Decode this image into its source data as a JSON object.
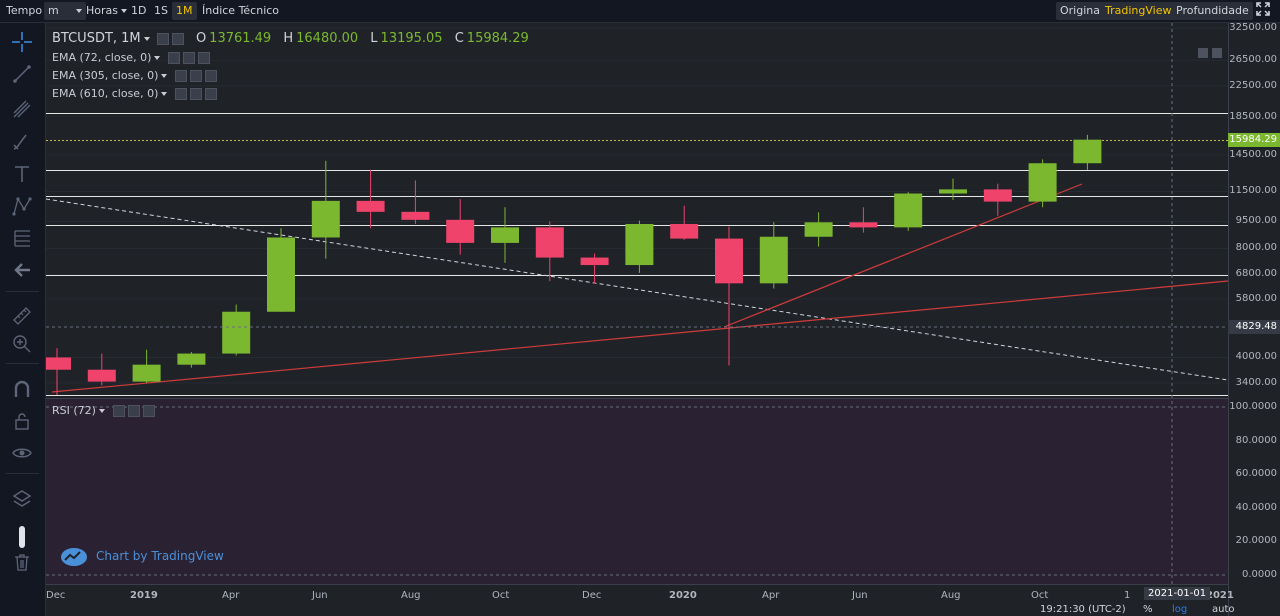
{
  "toolbar": {
    "tempo": "Tempo",
    "unit": "m",
    "horas": "Horas",
    "intervals": [
      "1D",
      "1S",
      "1M"
    ],
    "active_interval": "1M",
    "indicators": "Índice Técnico",
    "views": [
      "Original",
      "TradingView",
      "Profundidade"
    ],
    "active_view": "TradingView",
    "fullscreen_icon": "fullscreen-icon"
  },
  "left_tools": [
    "crosshair-icon",
    "trendline-icon",
    "pitchfork-icon",
    "brush-icon",
    "text-icon",
    "pattern-icon",
    "fib-icon",
    "arrow-left-icon",
    "ruler-icon",
    "zoom-icon",
    "magnet-icon",
    "lock-icon",
    "eye-icon",
    "layers-icon",
    "trash-icon"
  ],
  "legend": {
    "symbol": "BTCUSDT, 1M",
    "open_label": "O",
    "open": "13761.49",
    "high_label": "H",
    "high": "16480.00",
    "low_label": "L",
    "low": "13195.05",
    "close_label": "C",
    "close": "15984.29",
    "studies": [
      "EMA (72, close, 0)",
      "EMA (305, close, 0)",
      "EMA (610, close, 0)"
    ],
    "rsi": "RSI (72)"
  },
  "price_axis": {
    "ticks": [
      "32500.00",
      "26500.00",
      "22500.00",
      "18500.00",
      "14500.00",
      "11500.00",
      "9500.00",
      "8000.00",
      "6800.00",
      "5800.00",
      "4000.00",
      "3400.00"
    ],
    "last_price": "15984.29",
    "crosshair_price": "4829.48"
  },
  "rsi_axis": {
    "ticks": [
      "100.0000",
      "80.0000",
      "60.0000",
      "40.0000",
      "20.0000",
      "0.0000"
    ]
  },
  "time_axis": {
    "labels": [
      "Dec",
      "2019",
      "Apr",
      "Jun",
      "Aug",
      "Oct",
      "Dec",
      "2020",
      "Apr",
      "Jun",
      "Aug",
      "Oct",
      "1",
      "2021"
    ],
    "crosshair_date": "2021-01-01"
  },
  "status_bar": {
    "time": "19:21:30 (UTC-2)",
    "percent": "%",
    "log": "log",
    "auto": "auto"
  },
  "watermark": "Chart by TradingView",
  "colors": {
    "up": "#7cb82f",
    "down": "#f0436b",
    "accent": "#f3c500",
    "bg": "#1f2328"
  },
  "chart_data": {
    "type": "candlestick",
    "symbol": "BTCUSDT",
    "interval": "1M",
    "scale": "log",
    "candles": [
      {
        "t": "2018-12",
        "o": 4000,
        "h": 4240,
        "l": 3150,
        "c": 3700
      },
      {
        "t": "2019-01",
        "o": 3700,
        "h": 4100,
        "l": 3350,
        "c": 3430
      },
      {
        "t": "2019-02",
        "o": 3430,
        "h": 4200,
        "l": 3400,
        "c": 3820
      },
      {
        "t": "2019-03",
        "o": 3820,
        "h": 4140,
        "l": 3750,
        "c": 4100
      },
      {
        "t": "2019-04",
        "o": 4100,
        "h": 5600,
        "l": 4050,
        "c": 5350
      },
      {
        "t": "2019-05",
        "o": 5350,
        "h": 9100,
        "l": 5350,
        "c": 8580
      },
      {
        "t": "2019-06",
        "o": 8580,
        "h": 13970,
        "l": 7500,
        "c": 10830
      },
      {
        "t": "2019-07",
        "o": 10830,
        "h": 13200,
        "l": 9100,
        "c": 10100
      },
      {
        "t": "2019-08",
        "o": 10100,
        "h": 12340,
        "l": 9350,
        "c": 9600
      },
      {
        "t": "2019-09",
        "o": 9600,
        "h": 10950,
        "l": 7700,
        "c": 8290
      },
      {
        "t": "2019-10",
        "o": 8290,
        "h": 10400,
        "l": 7300,
        "c": 9150
      },
      {
        "t": "2019-11",
        "o": 9150,
        "h": 9500,
        "l": 6500,
        "c": 7550
      },
      {
        "t": "2019-12",
        "o": 7550,
        "h": 7750,
        "l": 6400,
        "c": 7200
      },
      {
        "t": "2020-01",
        "o": 7200,
        "h": 9550,
        "l": 6850,
        "c": 9350
      },
      {
        "t": "2020-02",
        "o": 9350,
        "h": 10500,
        "l": 8450,
        "c": 8520
      },
      {
        "t": "2020-03",
        "o": 8520,
        "h": 9200,
        "l": 3800,
        "c": 6410
      },
      {
        "t": "2020-04",
        "o": 6410,
        "h": 9460,
        "l": 6200,
        "c": 8620
      },
      {
        "t": "2020-05",
        "o": 8620,
        "h": 10070,
        "l": 8100,
        "c": 9450
      },
      {
        "t": "2020-06",
        "o": 9450,
        "h": 10400,
        "l": 8850,
        "c": 9150
      },
      {
        "t": "2020-07",
        "o": 9150,
        "h": 11450,
        "l": 8950,
        "c": 11350
      },
      {
        "t": "2020-08",
        "o": 11350,
        "h": 12480,
        "l": 10900,
        "c": 11650
      },
      {
        "t": "2020-09",
        "o": 11650,
        "h": 12080,
        "l": 9850,
        "c": 10780
      },
      {
        "t": "2020-10",
        "o": 10780,
        "h": 14100,
        "l": 10400,
        "c": 13760
      },
      {
        "t": "2020-11",
        "o": 13761.49,
        "h": 16480,
        "l": 13195.05,
        "c": 15984.29
      }
    ],
    "horizontal_levels": [
      19000,
      15984.29,
      13200,
      11150,
      9300,
      6750,
      3150
    ],
    "rsi_period": 72,
    "rsi_range": [
      0,
      100
    ],
    "grid": true
  }
}
